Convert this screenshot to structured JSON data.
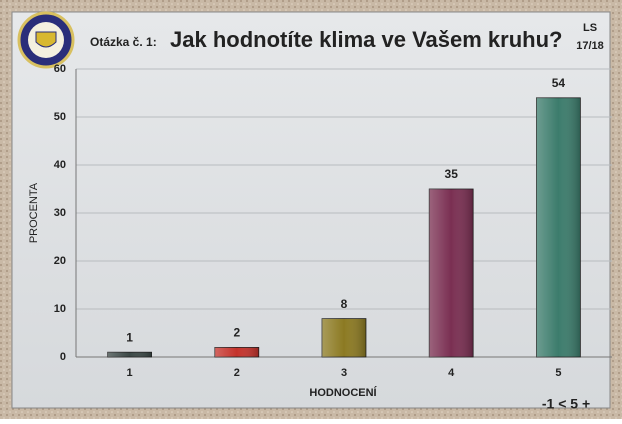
{
  "chart_data": {
    "type": "bar",
    "title_prefix": "Otázka č. 1:",
    "title": "Jak hodnotíte klima ve Vašem kruhu?",
    "term": [
      "LS",
      "17/18"
    ],
    "categories": [
      "1",
      "2",
      "3",
      "4",
      "5"
    ],
    "values": [
      1,
      2,
      8,
      35,
      54
    ],
    "colors": [
      "#3b4846",
      "#c4322b",
      "#8c7a22",
      "#7a2f52",
      "#3c7c6c"
    ],
    "ylim": [
      0,
      60
    ],
    "yticks": [
      0,
      10,
      20,
      30,
      40,
      50,
      60
    ],
    "grid": true,
    "ylabel": "PROCENTA",
    "xlabel": "HODNOCENÍ",
    "note": "-1 < 5 +"
  }
}
